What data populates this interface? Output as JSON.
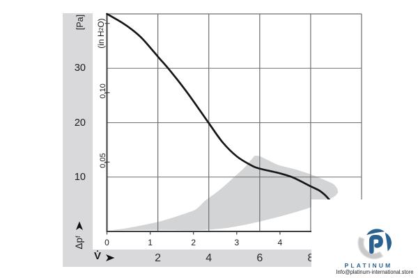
{
  "chart_data": {
    "type": "line",
    "title": "",
    "y_axis": {
      "unit_primary_label": "[Pa]",
      "unit_secondary_parts": {
        "pre": "(in H",
        "sub": "2",
        "post": "O)"
      },
      "axis_label_parts": {
        "base": "Δp",
        "sub": "f"
      },
      "pa_ticks": [
        {
          "value": 30,
          "label": "30"
        },
        {
          "value": 20,
          "label": "20"
        },
        {
          "value": 10,
          "label": "10"
        }
      ],
      "inh2o_ticks": [
        {
          "inh2o": 0.05,
          "label": "0,05"
        },
        {
          "inh2o": 0.1,
          "label": "0,10"
        },
        {
          "inh2o": 0.15,
          "label": ""
        }
      ],
      "range_pa": [
        0,
        40
      ],
      "gridline_values_pa": [
        10,
        20,
        30
      ]
    },
    "x_axis": {
      "axis_label": "V̇",
      "bottom_scale_ticks": [
        {
          "value": 2,
          "label": "2"
        },
        {
          "value": 4,
          "label": "4"
        },
        {
          "value": 6,
          "label": "6"
        },
        {
          "value": 8,
          "label": "8"
        }
      ],
      "upper_scale_ticks": [
        {
          "value": 0,
          "label": "0"
        },
        {
          "value": 1.699,
          "label": "1"
        },
        {
          "value": 3.398,
          "label": "2"
        },
        {
          "value": 5.097,
          "label": "3"
        },
        {
          "value": 6.796,
          "label": "4"
        }
      ],
      "range": [
        0,
        10
      ],
      "gridline_values": [
        2,
        4,
        6,
        8
      ]
    },
    "series": [
      {
        "name": "fan-curve",
        "color": "#161616",
        "points": [
          [
            0,
            40
          ],
          [
            0.59,
            38.4
          ],
          [
            1.0,
            37.05
          ],
          [
            1.41,
            35.35
          ],
          [
            2.01,
            32.1
          ],
          [
            2.5,
            29.45
          ],
          [
            3.19,
            25.3
          ],
          [
            4.01,
            19.85
          ],
          [
            4.55,
            16.35
          ],
          [
            5.1,
            13.8
          ],
          [
            5.65,
            12.2
          ],
          [
            6.0,
            11.55
          ],
          [
            6.74,
            10.75
          ],
          [
            7.29,
            9.95
          ],
          [
            8.0,
            8.3
          ],
          [
            8.33,
            7.55
          ],
          [
            8.55,
            6.75
          ],
          [
            8.74,
            5.8
          ]
        ]
      }
    ],
    "operating_range": {
      "name": "recommended-operating-range",
      "color": "#d3d4d6",
      "points": [
        [
          0.23,
          0.22
        ],
        [
          1.82,
          0.28
        ],
        [
          3.46,
          0.22
        ],
        [
          4.15,
          0.38
        ],
        [
          4.75,
          0.66
        ],
        [
          5.38,
          1.18
        ],
        [
          6.0,
          1.82
        ],
        [
          6.66,
          2.58
        ],
        [
          7.29,
          3.39
        ],
        [
          7.7,
          3.96
        ],
        [
          8.02,
          4.47
        ],
        [
          8.44,
          5.3
        ],
        [
          8.8,
          6.07
        ],
        [
          8.96,
          6.52
        ],
        [
          9.07,
          7.16
        ],
        [
          9.04,
          7.92
        ],
        [
          8.88,
          8.75
        ],
        [
          8.52,
          9.52
        ],
        [
          8.0,
          10.5
        ],
        [
          7.43,
          11.37
        ],
        [
          6.74,
          12.2
        ],
        [
          6.33,
          13.1
        ],
        [
          6.0,
          13.83
        ],
        [
          5.81,
          13.93
        ],
        [
          5.7,
          13.35
        ],
        [
          5.38,
          11.63
        ],
        [
          4.91,
          9.64
        ],
        [
          4.55,
          8.12
        ],
        [
          4.23,
          6.93
        ],
        [
          3.87,
          5.7
        ],
        [
          3.46,
          3.96
        ],
        [
          2.64,
          2.62
        ],
        [
          2.01,
          1.75
        ],
        [
          1.27,
          1.02
        ],
        [
          0.67,
          0.51
        ]
      ]
    }
  },
  "watermark": {
    "brand": "PLATINUM",
    "email": "Info@platinum-international.store",
    "brand_color": "#2b618f",
    "logo_gray": "#c9c9cb"
  }
}
